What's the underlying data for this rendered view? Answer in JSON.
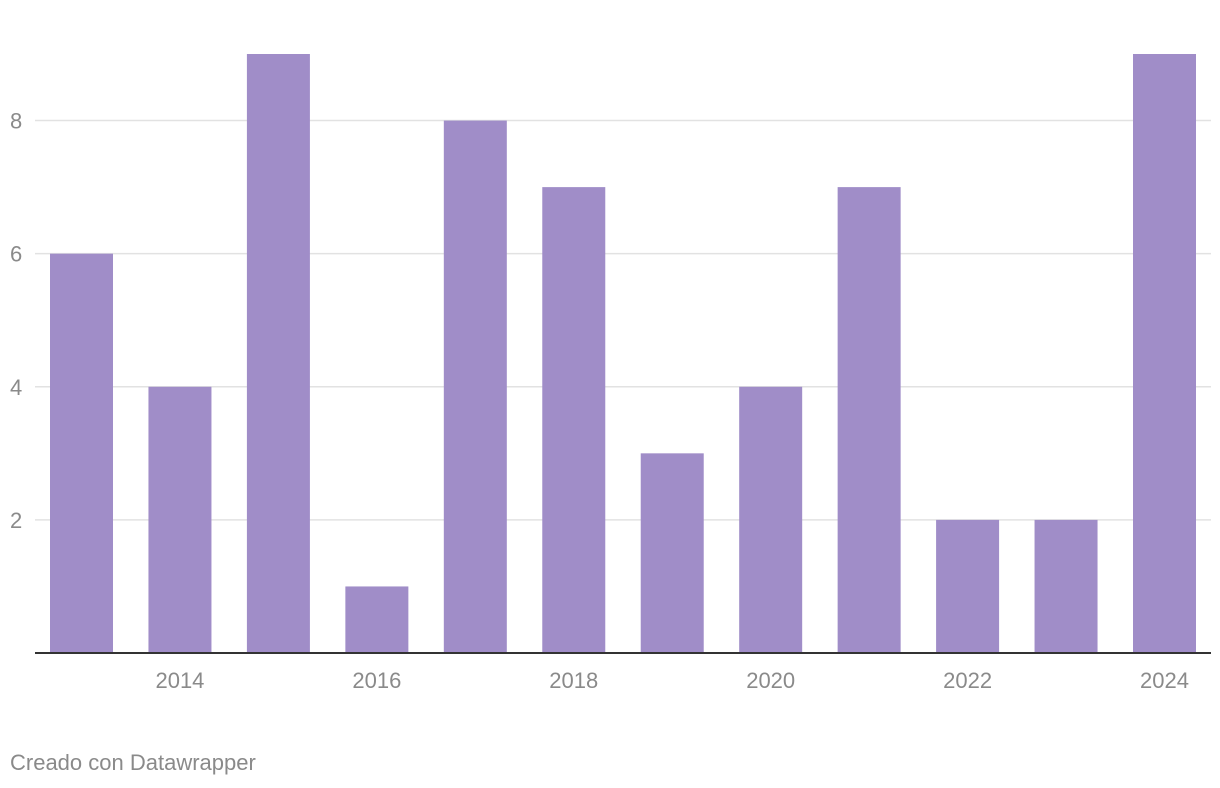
{
  "chart_data": {
    "type": "bar",
    "x": [
      2013,
      2014,
      2015,
      2016,
      2017,
      2018,
      2019,
      2020,
      2021,
      2022,
      2023,
      2024
    ],
    "values": [
      6,
      4,
      9,
      1,
      8,
      7,
      3,
      4,
      7,
      2,
      2,
      9
    ],
    "x_tick_labels": [
      "2014",
      "2016",
      "2018",
      "2020",
      "2022",
      "2024"
    ],
    "y_ticks": [
      2,
      4,
      6,
      8
    ],
    "ylim": [
      0,
      9
    ],
    "grid": true,
    "bar_color": "#a08dc8",
    "title": "",
    "xlabel": "",
    "ylabel": ""
  },
  "footer": {
    "credit": "Creado con Datawrapper"
  },
  "colors": {
    "bar": "#a08dc8",
    "gridline": "#e2e2e2",
    "axis": "#333333",
    "label": "#8a8a8a"
  }
}
